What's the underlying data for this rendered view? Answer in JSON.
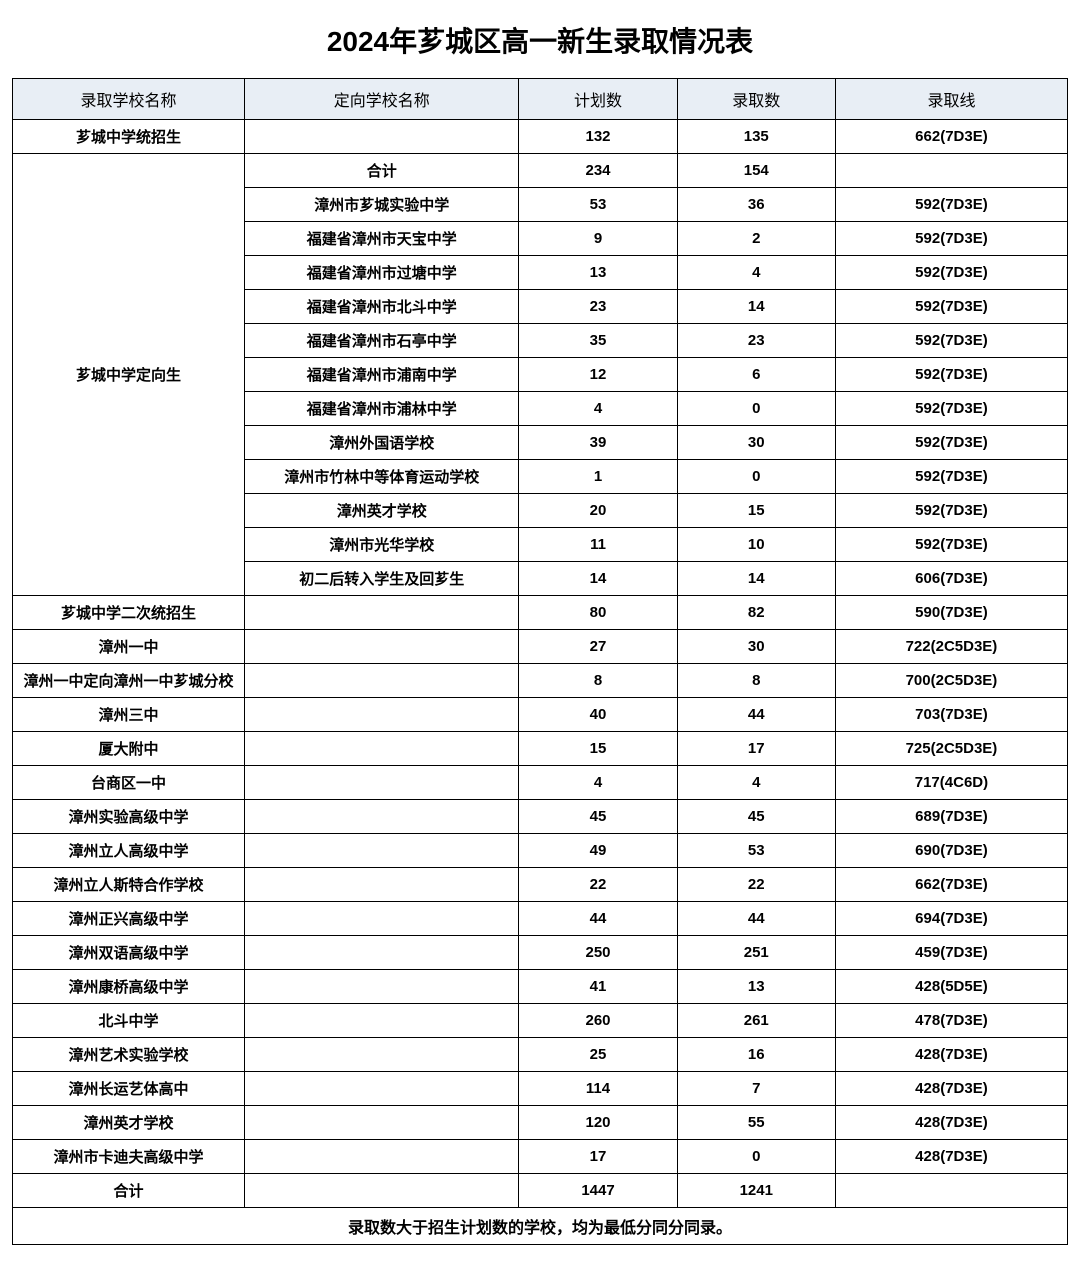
{
  "title": "2024年芗城区高一新生录取情况表",
  "columns": {
    "school": "录取学校名称",
    "target": "定向学校名称",
    "plan": "计划数",
    "admitted": "录取数",
    "score": "录取线"
  },
  "colors": {
    "header_bg": "#e8eef5",
    "border": "#000000",
    "text": "#000000",
    "background": "#ffffff"
  },
  "rows": [
    {
      "school": "芗城中学统招生",
      "target": "",
      "plan": "132",
      "admitted": "135",
      "score": "662(7D3E)",
      "bold": true
    },
    {
      "school_rowspan": 13,
      "school": "芗城中学定向生",
      "target": "合计",
      "plan": "234",
      "admitted": "154",
      "score": "",
      "bold": true
    },
    {
      "target": "漳州市芗城实验中学",
      "plan": "53",
      "admitted": "36",
      "score": "592(7D3E)",
      "bold": true
    },
    {
      "target": "福建省漳州市天宝中学",
      "plan": "9",
      "admitted": "2",
      "score": "592(7D3E)",
      "bold": true
    },
    {
      "target": "福建省漳州市过塘中学",
      "plan": "13",
      "admitted": "4",
      "score": "592(7D3E)",
      "bold": true
    },
    {
      "target": "福建省漳州市北斗中学",
      "plan": "23",
      "admitted": "14",
      "score": "592(7D3E)",
      "bold": true
    },
    {
      "target": "福建省漳州市石亭中学",
      "plan": "35",
      "admitted": "23",
      "score": "592(7D3E)",
      "bold": true
    },
    {
      "target": "福建省漳州市浦南中学",
      "plan": "12",
      "admitted": "6",
      "score": "592(7D3E)",
      "bold": true
    },
    {
      "target": "福建省漳州市浦林中学",
      "plan": "4",
      "admitted": "0",
      "score": "592(7D3E)",
      "bold": true
    },
    {
      "target": "漳州外国语学校",
      "plan": "39",
      "admitted": "30",
      "score": "592(7D3E)",
      "bold": true
    },
    {
      "target": "漳州市竹林中等体育运动学校",
      "plan": "1",
      "admitted": "0",
      "score": "592(7D3E)",
      "bold": true
    },
    {
      "target": "漳州英才学校",
      "plan": "20",
      "admitted": "15",
      "score": "592(7D3E)",
      "bold": true
    },
    {
      "target": "漳州市光华学校",
      "plan": "11",
      "admitted": "10",
      "score": "592(7D3E)",
      "bold": true
    },
    {
      "target": "初二后转入学生及回芗生",
      "plan": "14",
      "admitted": "14",
      "score": "606(7D3E)",
      "bold": true
    },
    {
      "school": "芗城中学二次统招生",
      "target": "",
      "plan": "80",
      "admitted": "82",
      "score": "590(7D3E)",
      "bold": true
    },
    {
      "school": "漳州一中",
      "target": "",
      "plan": "27",
      "admitted": "30",
      "score": "722(2C5D3E)",
      "bold": true
    },
    {
      "school": "漳州一中定向漳州一中芗城分校",
      "target": "",
      "plan": "8",
      "admitted": "8",
      "score": "700(2C5D3E)",
      "bold": true
    },
    {
      "school": "漳州三中",
      "target": "",
      "plan": "40",
      "admitted": "44",
      "score": "703(7D3E)",
      "bold": true
    },
    {
      "school": "厦大附中",
      "target": "",
      "plan": "15",
      "admitted": "17",
      "score": "725(2C5D3E)",
      "bold": true
    },
    {
      "school": "台商区一中",
      "target": "",
      "plan": "4",
      "admitted": "4",
      "score": "717(4C6D)",
      "bold": true
    },
    {
      "school": "漳州实验高级中学",
      "target": "",
      "plan": "45",
      "admitted": "45",
      "score": "689(7D3E)",
      "bold": true
    },
    {
      "school": "漳州立人高级中学",
      "target": "",
      "plan": "49",
      "admitted": "53",
      "score": "690(7D3E)",
      "bold": true
    },
    {
      "school": "漳州立人斯特合作学校",
      "target": "",
      "plan": "22",
      "admitted": "22",
      "score": "662(7D3E)",
      "bold": true
    },
    {
      "school": "漳州正兴高级中学",
      "target": "",
      "plan": "44",
      "admitted": "44",
      "score": "694(7D3E)",
      "bold": true
    },
    {
      "school": "漳州双语高级中学",
      "target": "",
      "plan": "250",
      "admitted": "251",
      "score": "459(7D3E)",
      "bold": true
    },
    {
      "school": "漳州康桥高级中学",
      "target": "",
      "plan": "41",
      "admitted": "13",
      "score": "428(5D5E)",
      "bold": true
    },
    {
      "school": "北斗中学",
      "target": "",
      "plan": "260",
      "admitted": "261",
      "score": "478(7D3E)",
      "bold": true
    },
    {
      "school": "漳州艺术实验学校",
      "target": "",
      "plan": "25",
      "admitted": "16",
      "score": "428(7D3E)",
      "bold": true
    },
    {
      "school": "漳州长运艺体高中",
      "target": "",
      "plan": "114",
      "admitted": "7",
      "score": "428(7D3E)",
      "bold": true
    },
    {
      "school": "漳州英才学校",
      "target": "",
      "plan": "120",
      "admitted": "55",
      "score": "428(7D3E)",
      "bold": true
    },
    {
      "school": "漳州市卡迪夫高级中学",
      "target": "",
      "plan": "17",
      "admitted": "0",
      "score": "428(7D3E)",
      "bold": true
    },
    {
      "school": "合计",
      "target": "",
      "plan": "1447",
      "admitted": "1241",
      "score": "",
      "bold": true
    }
  ],
  "footnote": "录取数大于招生计划数的学校，均为最低分同分同录。"
}
